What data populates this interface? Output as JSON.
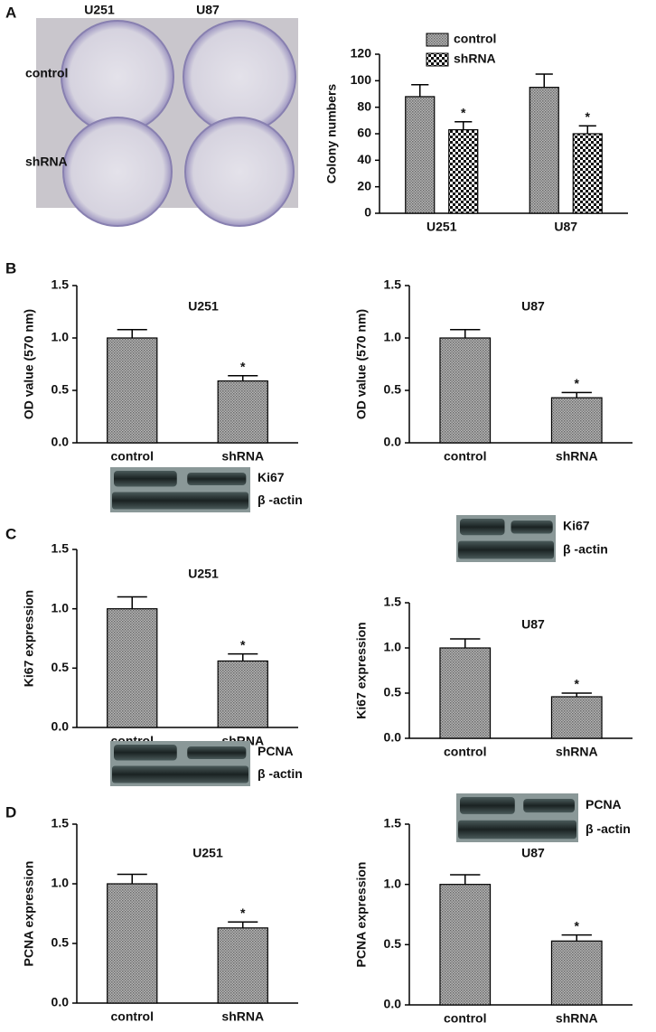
{
  "panel_labels": [
    "A",
    "B",
    "C",
    "D"
  ],
  "photo": {
    "columns": [
      "U251",
      "U87"
    ],
    "rows": [
      "control",
      "shRNA"
    ]
  },
  "chart_data": [
    {
      "type": "bar",
      "ylabel": "Colony numbers",
      "categories": [
        "U251",
        "U87"
      ],
      "series": [
        {
          "name": "control",
          "pattern": "dense",
          "values": [
            88,
            95
          ],
          "errors": [
            9,
            10
          ]
        },
        {
          "name": "shRNA",
          "pattern": "checker",
          "values": [
            63,
            60
          ],
          "errors": [
            6,
            6
          ]
        }
      ],
      "annotations": [
        {
          "series": 1,
          "index": 0,
          "text": "*"
        },
        {
          "series": 1,
          "index": 1,
          "text": "*"
        }
      ],
      "ylim": [
        0,
        120
      ],
      "yticks": [
        0,
        20,
        40,
        60,
        80,
        100,
        120
      ],
      "legend": "top"
    },
    {
      "type": "bar",
      "title": "U251",
      "ylabel": "OD value (570 nm)",
      "categories": [
        "control",
        "shRNA"
      ],
      "values": [
        1.0,
        0.59
      ],
      "errors": [
        0.08,
        0.05
      ],
      "pattern": "dense",
      "annotations": [
        {
          "index": 1,
          "text": "*"
        }
      ],
      "ylim": [
        0,
        1.5
      ],
      "yticks": [
        {
          "value": 0,
          "label": "0.0"
        },
        0.5,
        {
          "value": 1,
          "label": "1.0"
        },
        1.5
      ]
    },
    {
      "type": "bar",
      "title": "U87",
      "ylabel": "OD value (570 nm)",
      "categories": [
        "control",
        "shRNA"
      ],
      "values": [
        1.0,
        0.43
      ],
      "errors": [
        0.08,
        0.05
      ],
      "pattern": "dense",
      "annotations": [
        {
          "index": 1,
          "text": "*"
        }
      ],
      "ylim": [
        0,
        1.5
      ],
      "yticks": [
        {
          "value": 0,
          "label": "0.0"
        },
        0.5,
        {
          "value": 1,
          "label": "1.0"
        },
        1.5
      ]
    },
    {
      "type": "bar",
      "title": "U251",
      "ylabel": "Ki67 expression",
      "categories": [
        "control",
        "shRNA"
      ],
      "values": [
        1.0,
        0.56
      ],
      "errors": [
        0.1,
        0.06
      ],
      "pattern": "dense",
      "blot_labels": [
        "Ki67",
        "β -actin"
      ],
      "annotations": [
        {
          "index": 1,
          "text": "*"
        }
      ],
      "ylim": [
        0,
        1.5
      ],
      "yticks": [
        {
          "value": 0,
          "label": "0.0"
        },
        0.5,
        {
          "value": 1,
          "label": "1.0"
        },
        1.5
      ]
    },
    {
      "type": "bar",
      "title": "U87",
      "ylabel": "Ki67 expression",
      "categories": [
        "control",
        "shRNA"
      ],
      "values": [
        1.0,
        0.46
      ],
      "errors": [
        0.1,
        0.04
      ],
      "pattern": "dense",
      "blot_labels": [
        "Ki67",
        "β -actin"
      ],
      "annotations": [
        {
          "index": 1,
          "text": "*"
        }
      ],
      "ylim": [
        0,
        1.5
      ],
      "yticks": [
        {
          "value": 0,
          "label": "0.0"
        },
        0.5,
        {
          "value": 1,
          "label": "1.0"
        },
        1.5
      ]
    },
    {
      "type": "bar",
      "title": "U251",
      "ylabel": "PCNA expression",
      "categories": [
        "control",
        "shRNA"
      ],
      "values": [
        1.0,
        0.63
      ],
      "errors": [
        0.08,
        0.05
      ],
      "pattern": "dense",
      "blot_labels": [
        "PCNA",
        "β -actin"
      ],
      "annotations": [
        {
          "index": 1,
          "text": "*"
        }
      ],
      "ylim": [
        0,
        1.5
      ],
      "yticks": [
        {
          "value": 0,
          "label": "0.0"
        },
        0.5,
        {
          "value": 1,
          "label": "1.0"
        },
        1.5
      ]
    },
    {
      "type": "bar",
      "title": "U87",
      "ylabel": "PCNA expression",
      "categories": [
        "control",
        "shRNA"
      ],
      "values": [
        1.0,
        0.53
      ],
      "errors": [
        0.08,
        0.05
      ],
      "pattern": "dense",
      "blot_labels": [
        "PCNA",
        "β -actin"
      ],
      "annotations": [
        {
          "index": 1,
          "text": "*"
        }
      ],
      "ylim": [
        0,
        1.5
      ],
      "yticks": [
        {
          "value": 0,
          "label": "0.0"
        },
        0.5,
        {
          "value": 1,
          "label": "1.0"
        },
        1.5
      ]
    }
  ]
}
